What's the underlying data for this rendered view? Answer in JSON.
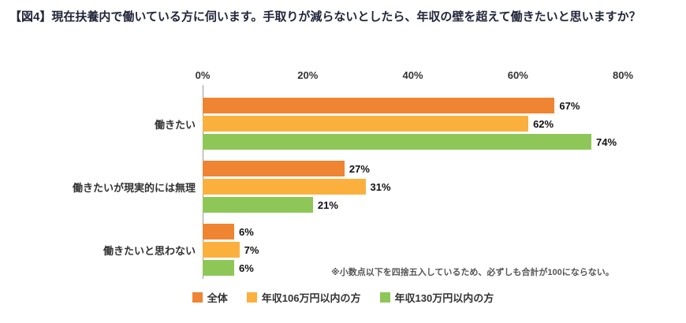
{
  "title": {
    "text": "【図4】現在扶養内で働いている方に伺います。手取りが減らないとしたら、年収の壁を超えて働きたいと思いますか？"
  },
  "chart_data": {
    "type": "bar",
    "orientation": "horizontal",
    "title": "【図4】現在扶養内で働いている方に伺います。手取りが減らないとしたら、年収の壁を超えて働きたいと思いますか？",
    "categories": [
      "働きたい",
      "働きたいが現実的には無理",
      "働きたいと思わない"
    ],
    "series": [
      {
        "name": "全体",
        "color": "#ef8432",
        "values": [
          67,
          27,
          6
        ]
      },
      {
        "name": "年収106万円以内の方",
        "color": "#fbb03e",
        "values": [
          62,
          31,
          7
        ]
      },
      {
        "name": "年収130万円以内の方",
        "color": "#8ec757",
        "values": [
          74,
          21,
          6
        ]
      }
    ],
    "xlim": [
      0,
      80
    ],
    "x_ticks": [
      "0%",
      "20%",
      "40%",
      "60%",
      "80%"
    ],
    "value_suffix": "%",
    "grid": false,
    "legend_position": "bottom",
    "note": "※小数点以下を四捨五入しているため、必ずしも合計が100にならない。"
  }
}
